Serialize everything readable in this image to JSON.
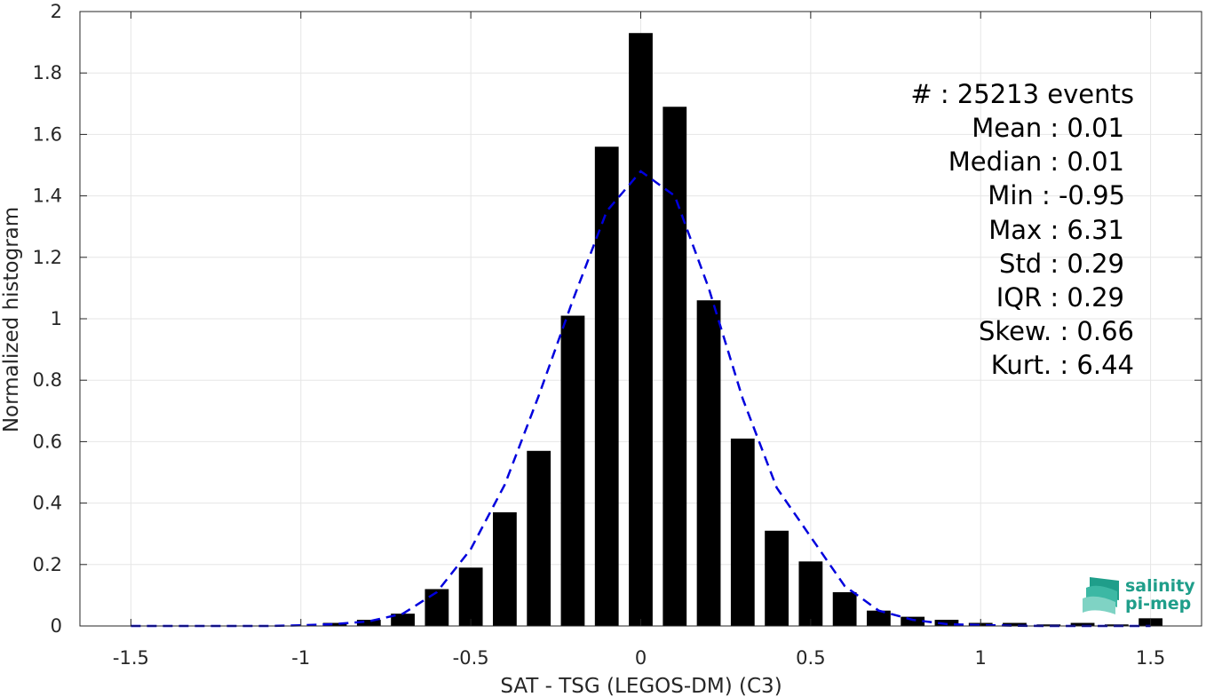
{
  "chart_data": {
    "type": "bar",
    "xlabel": "SAT - TSG (LEGOS-DM) (C3)",
    "ylabel": "Normalized histogram",
    "xlim": [
      -1.65,
      1.65
    ],
    "ylim": [
      0,
      2
    ],
    "xticks": [
      -1.5,
      -1,
      -0.5,
      0,
      0.5,
      1,
      1.5
    ],
    "xtick_labels": [
      "-1.5",
      "-1",
      "-0.5",
      "0",
      "0.5",
      "1",
      "1.5"
    ],
    "yticks": [
      0,
      0.2,
      0.4,
      0.6,
      0.8,
      1,
      1.2,
      1.4,
      1.6,
      1.8,
      2
    ],
    "ytick_labels": [
      "0",
      "0.2",
      "0.4",
      "0.6",
      "0.8",
      "1",
      "1.2",
      "1.4",
      "1.6",
      "1.8",
      "2"
    ],
    "grid": true,
    "bar_width": 0.07,
    "bar_color": "#000000",
    "bars": {
      "x": [
        -0.9,
        -0.8,
        -0.7,
        -0.6,
        -0.5,
        -0.4,
        -0.3,
        -0.2,
        -0.1,
        0,
        0.1,
        0.2,
        0.3,
        0.4,
        0.5,
        0.6,
        0.7,
        0.8,
        0.9,
        1.0,
        1.1,
        1.2,
        1.3,
        1.4,
        1.5
      ],
      "values": [
        0.01,
        0.02,
        0.04,
        0.12,
        0.19,
        0.37,
        0.57,
        1.01,
        1.56,
        1.93,
        1.69,
        1.06,
        0.61,
        0.31,
        0.21,
        0.11,
        0.05,
        0.03,
        0.02,
        0.01,
        0.01,
        0.005,
        0.01,
        0.005,
        0.025
      ]
    },
    "fit_curve": {
      "style": "dashed",
      "color": "#0000dd",
      "x": [
        -1.5,
        -1.4,
        -1.3,
        -1.2,
        -1.1,
        -1.0,
        -0.9,
        -0.8,
        -0.7,
        -0.6,
        -0.5,
        -0.4,
        -0.3,
        -0.2,
        -0.1,
        0,
        0.1,
        0.2,
        0.3,
        0.4,
        0.5,
        0.6,
        0.7,
        0.8,
        0.9,
        1.0,
        1.1,
        1.2,
        1.3,
        1.4,
        1.5
      ],
      "y": [
        0.0,
        0.0,
        0.0,
        0.0,
        0.0,
        0.002,
        0.006,
        0.015,
        0.04,
        0.11,
        0.25,
        0.46,
        0.75,
        1.06,
        1.35,
        1.48,
        1.4,
        1.1,
        0.74,
        0.45,
        0.29,
        0.13,
        0.05,
        0.02,
        0.006,
        0.003,
        0.001,
        0.0,
        0.0,
        0.0,
        0.0
      ]
    }
  },
  "stats": [
    {
      "label": "#  : 25213 events"
    },
    {
      "label": "Mean : 0.01"
    },
    {
      "label": "Median : 0.01"
    },
    {
      "label": "Min : -0.95"
    },
    {
      "label": "Max : 6.31"
    },
    {
      "label": "Std : 0.29"
    },
    {
      "label": "IQR : 0.29"
    },
    {
      "label": "Skew. : 0.66"
    },
    {
      "label": "Kurt. : 6.44"
    }
  ],
  "logo": {
    "line1": "salinity",
    "line2": "pi-mep",
    "color": "#1f9e8a"
  }
}
